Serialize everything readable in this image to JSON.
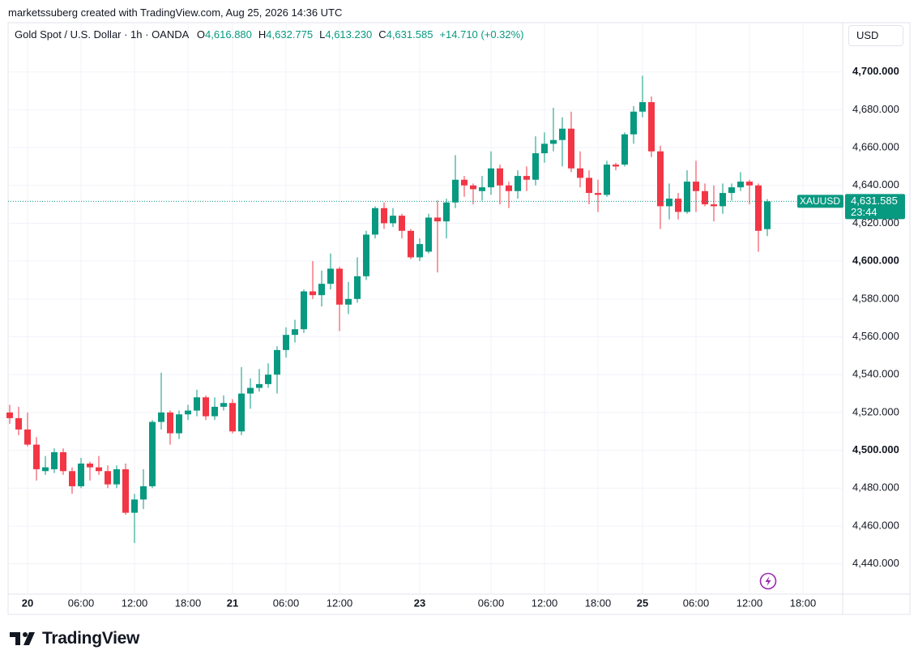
{
  "chart_data": {
    "type": "candlestick",
    "credit": "marketssuberg created with TradingView.com, Aug 25, 2026 14:36 UTC",
    "title": "Gold Spot / U.S. Dollar · 1h · OANDA",
    "legend": [
      {
        "key": "O",
        "text": "4,616.880"
      },
      {
        "key": "H",
        "text": "4,632.775"
      },
      {
        "key": "L",
        "text": "4,613.230"
      },
      {
        "key": "C",
        "text": "4,631.585"
      }
    ],
    "change": "+14.710 (+0.32%)",
    "currency": "USD",
    "symbol": "XAUUSD",
    "last_price": {
      "value": 4631.585,
      "label": "4,631.585"
    },
    "countdown": "23:44",
    "brand": "TradingView",
    "up_color": "#089981",
    "down_color": "#f23645",
    "grid": true,
    "categories": [
      null,
      null,
      "20",
      null,
      null,
      null,
      null,
      null,
      "06:00",
      null,
      null,
      null,
      null,
      null,
      "12:00",
      null,
      null,
      null,
      null,
      null,
      "18:00",
      null,
      null,
      null,
      null,
      "21",
      null,
      null,
      null,
      null,
      null,
      "06:00",
      null,
      null,
      null,
      null,
      null,
      "12:00",
      null,
      null,
      null,
      null,
      null,
      null,
      null,
      null,
      "23",
      null,
      null,
      null,
      null,
      null,
      null,
      null,
      "06:00",
      null,
      null,
      null,
      null,
      null,
      "12:00",
      null,
      null,
      null,
      null,
      null,
      "18:00",
      null,
      null,
      null,
      null,
      "25",
      null,
      null,
      null,
      null,
      null,
      "06:00",
      null,
      null,
      null,
      null,
      null,
      "12:00",
      null,
      null,
      null,
      null,
      null,
      "18:00"
    ],
    "open": [
      4520,
      4517,
      4511,
      4503,
      4489,
      4490,
      4499,
      4489,
      4481,
      4493,
      4491,
      4489,
      4482,
      4490,
      4467,
      4474,
      4481,
      4515,
      4520,
      4509,
      4519,
      4521,
      4528,
      4518,
      4523,
      4525,
      4510,
      4530,
      4533,
      4535,
      4540,
      4553,
      4561,
      4564,
      4584,
      4582,
      4588,
      4596,
      4577,
      4580,
      4592,
      4614,
      4628,
      4620,
      4624,
      4616,
      4602,
      4605,
      4623,
      4621,
      4631,
      4643,
      4640,
      4637,
      4639,
      4649,
      4640,
      4637,
      4645,
      4643,
      4657,
      4662,
      4664,
      4670,
      4649,
      4644,
      4636,
      4635,
      4651,
      4651,
      4667,
      4679,
      4684,
      4658,
      4629,
      4633,
      4626,
      4642,
      4637,
      4630,
      4629,
      4636,
      4639,
      4642,
      4640,
      4616.88,
      null,
      null,
      null,
      null
    ],
    "high": [
      4524,
      4523,
      4520,
      4507,
      4497,
      4501,
      4501,
      4491,
      4496,
      4494,
      4497,
      4492,
      4492,
      4493,
      4477,
      4490,
      4516,
      4541,
      4521,
      4521,
      4524,
      4532,
      4529,
      4528,
      4529,
      4527,
      4544,
      4538,
      4543,
      4546,
      4555,
      4565,
      4569,
      4585,
      4600,
      4595,
      4604,
      4597,
      4589,
      4602,
      4616,
      4629,
      4631,
      4628,
      4625,
      4617,
      4612,
      4625,
      4632,
      4633,
      4656,
      4645,
      4641,
      4645,
      4658,
      4651,
      4642,
      4648,
      4650,
      4666,
      4668,
      4681,
      4676,
      4679,
      4658,
      4648,
      4643,
      4653,
      4652,
      4668,
      4682,
      4698,
      4687,
      4661,
      4641,
      4636,
      4648,
      4653,
      4641,
      4640,
      4641,
      4641,
      4647,
      4643,
      4641,
      4632.775,
      null,
      null,
      null,
      null
    ],
    "low": [
      4514,
      4508,
      4502,
      4484,
      4487,
      4488,
      4487,
      4477,
      4480,
      4484,
      4487,
      4480,
      4480,
      4466,
      4451,
      4469,
      4480,
      4511,
      4503,
      4506,
      4516,
      4518,
      4516,
      4516,
      4521,
      4509,
      4508,
      4522,
      4531,
      4533,
      4530,
      4549,
      4557,
      4562,
      4580,
      4576,
      4585,
      4563,
      4572,
      4578,
      4590,
      4612,
      4617,
      4618,
      4612,
      4601,
      4600,
      4604,
      4594,
      4612,
      4628,
      4634,
      4630,
      4632,
      4635,
      4630,
      4628,
      4633,
      4637,
      4640,
      4652,
      4658,
      4650,
      4647,
      4639,
      4630,
      4626,
      4634,
      4648,
      4650,
      4662,
      4676,
      4655,
      4617,
      4622,
      4622,
      4625,
      4626,
      4629,
      4621,
      4625,
      4632,
      4637,
      4630,
      4605,
      4613.23,
      null,
      null,
      null,
      null
    ],
    "close": [
      4517,
      4511,
      4503,
      4490,
      4491,
      4499,
      4489,
      4481,
      4493,
      4491,
      4489,
      4482,
      4490,
      4467,
      4474,
      4481,
      4515,
      4520,
      4509,
      4519,
      4521,
      4528,
      4518,
      4523,
      4525,
      4510,
      4530,
      4533,
      4535,
      4540,
      4553,
      4561,
      4564,
      4584,
      4582,
      4588,
      4596,
      4577,
      4580,
      4592,
      4614,
      4628,
      4620,
      4624,
      4616,
      4602,
      4609,
      4623,
      4621,
      4631,
      4643,
      4640,
      4638,
      4639,
      4649,
      4640,
      4637,
      4645,
      4643,
      4657,
      4662,
      4664,
      4670,
      4649,
      4644,
      4636,
      4635,
      4651,
      4650,
      4667,
      4679,
      4684,
      4658,
      4629,
      4633,
      4626,
      4642,
      4637,
      4630,
      4629,
      4636,
      4639,
      4642,
      4640,
      4616,
      4631.585,
      null,
      null,
      null,
      null
    ],
    "ylim": [
      4424,
      4726
    ],
    "yticks": [
      {
        "value": 4440,
        "label": "4,440.000"
      },
      {
        "value": 4460,
        "label": "4,460.000"
      },
      {
        "value": 4480,
        "label": "4,480.000"
      },
      {
        "value": 4500,
        "label": "4,500.000"
      },
      {
        "value": 4520,
        "label": "4,520.000"
      },
      {
        "value": 4540,
        "label": "4,540.000"
      },
      {
        "value": 4560,
        "label": "4,560.000"
      },
      {
        "value": 4580,
        "label": "4,580.000"
      },
      {
        "value": 4600,
        "label": "4,600.000"
      },
      {
        "value": 4620,
        "label": "4,620.000"
      },
      {
        "value": 4640,
        "label": "4,640.000"
      },
      {
        "value": 4660,
        "label": "4,660.000"
      },
      {
        "value": 4680,
        "label": "4,680.000"
      },
      {
        "value": 4700,
        "label": "4,700.000"
      }
    ]
  }
}
